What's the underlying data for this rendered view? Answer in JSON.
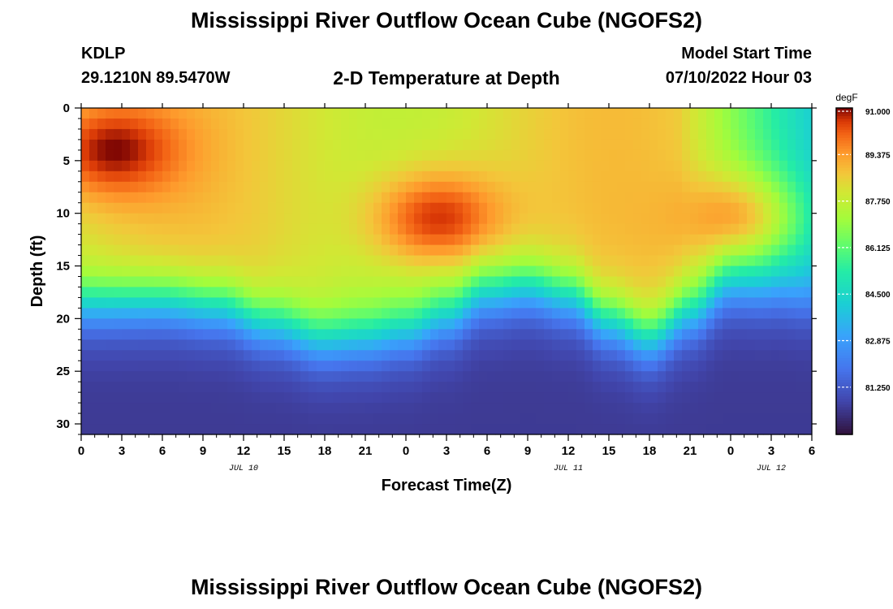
{
  "page": {
    "title": "Mississippi River Outflow Ocean Cube (NGOFS2)",
    "station": "KDLP",
    "coords": "29.1210N  89.5470W",
    "subtitle": "2-D Temperature at Depth",
    "model_start_label": "Model Start Time",
    "model_start_value": "07/10/2022 Hour 03",
    "repeated_title": "Mississippi River Outflow Ocean Cube (NGOFS2)"
  },
  "chart_data": {
    "type": "heatmap",
    "title": "2-D Temperature at Depth",
    "xlabel": "Forecast Time(Z)",
    "ylabel": "Depth (ft)",
    "x_ticks": [
      "0",
      "3",
      "6",
      "9",
      "12",
      "15",
      "18",
      "21",
      "0",
      "3",
      "6",
      "9",
      "12",
      "15",
      "18",
      "21",
      "0",
      "3",
      "6"
    ],
    "x_range_hours": [
      0,
      54
    ],
    "date_labels": [
      {
        "text": "JUL 10",
        "hour": 12
      },
      {
        "text": "JUL 11",
        "hour": 36
      },
      {
        "text": "JUL 12",
        "hour": 51
      }
    ],
    "y_ticks": [
      0,
      5,
      10,
      15,
      20,
      25,
      30
    ],
    "y_range_ft": [
      0,
      31
    ],
    "colorbar": {
      "unit": "degF",
      "range": [
        79.6,
        91.0
      ],
      "tick_values": [
        91.0,
        89.375,
        87.75,
        86.125,
        84.5,
        82.875,
        81.25
      ],
      "tick_labels": [
        "91.000",
        "89.375",
        "87.750",
        "86.125",
        "84.500",
        "82.875",
        "81.250"
      ]
    },
    "thermocline_depth_ft": [
      [
        0,
        18.5
      ],
      [
        6,
        18.3
      ],
      [
        10,
        18.8
      ],
      [
        14,
        20.5
      ],
      [
        18,
        22.0
      ],
      [
        21,
        21.8
      ],
      [
        24,
        21.2
      ],
      [
        27,
        19.8
      ],
      [
        30,
        17.6
      ],
      [
        33,
        17.0
      ],
      [
        36,
        17.8
      ],
      [
        39,
        20.2
      ],
      [
        42,
        21.8
      ],
      [
        45,
        19.5
      ],
      [
        48,
        17.0
      ],
      [
        51,
        17.5
      ],
      [
        54,
        18.3
      ]
    ],
    "surface_layer_warm_spots": [
      {
        "hour": 2.5,
        "depth_ft": 4,
        "temp_f": 91.0
      },
      {
        "hour": 26.5,
        "depth_ft": 10.5,
        "temp_f": 90.6
      },
      {
        "hour": 47.5,
        "depth_ft": 10.5,
        "temp_f": 89.4
      }
    ],
    "bottom_temp_f": 80.5
  }
}
